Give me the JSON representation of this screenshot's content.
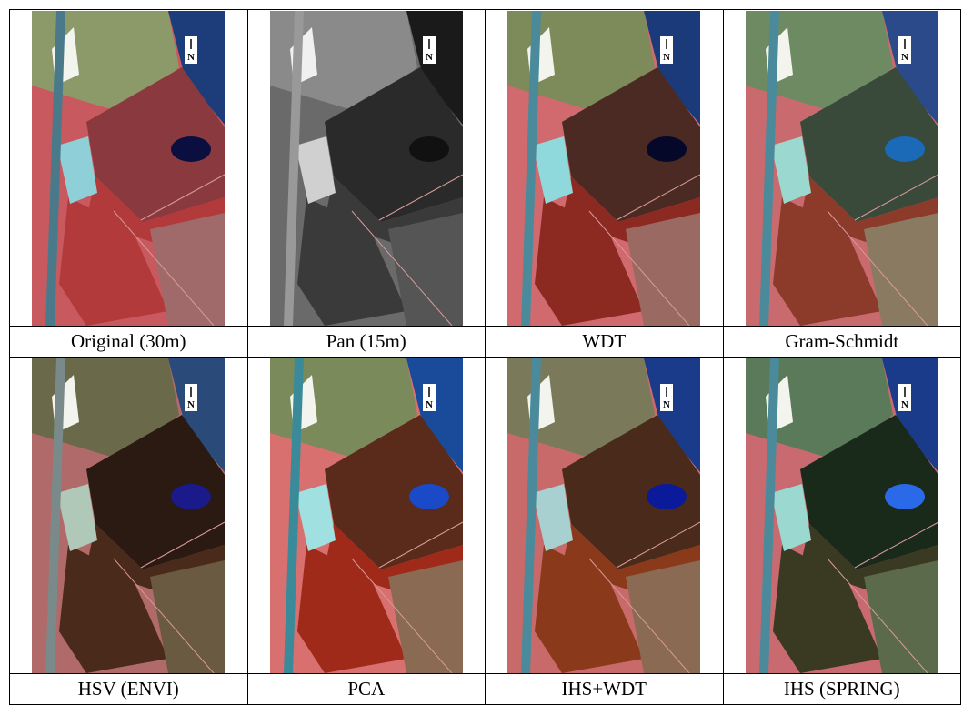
{
  "figure": {
    "north_label": "N",
    "panels": [
      {
        "caption": "Original (30m)"
      },
      {
        "caption": "Pan (15m)"
      },
      {
        "caption": "WDT"
      },
      {
        "caption": "Gram-Schmidt"
      },
      {
        "caption": "HSV (ENVI)"
      },
      {
        "caption": "PCA"
      },
      {
        "caption": "IHS+WDT"
      },
      {
        "caption": "IHS (SPRING)"
      }
    ]
  }
}
